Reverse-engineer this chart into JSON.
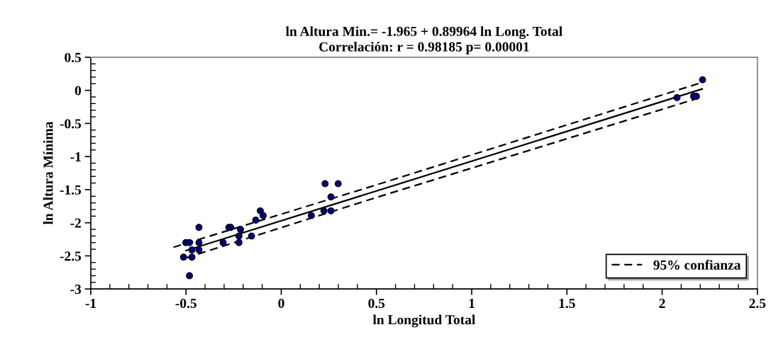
{
  "chart_data": {
    "type": "scatter",
    "title": "ln Altura Min.= -1.965 + 0.89964 ln Long. Total\nCorrelación: r = 0.98185 p= 0.00001",
    "xlabel": "ln Longitud Total",
    "ylabel": "ln Altura Mínima",
    "xlim": [
      -1,
      2.5
    ],
    "ylim": [
      -3,
      0.5
    ],
    "xticks": [
      -1,
      -0.5,
      0,
      0.5,
      1,
      1.5,
      2,
      2.5
    ],
    "yticks": [
      -3,
      -2.5,
      -2,
      -1.5,
      -1,
      -0.5,
      0,
      0.5
    ],
    "grid": false,
    "legend": "bottom right",
    "marker": "circle",
    "series": [
      {
        "color": "#000080",
        "x": [
          -0.513,
          -0.501,
          -0.482,
          -0.482,
          -0.469,
          -0.469,
          -0.432,
          -0.432,
          -0.432,
          -0.305,
          -0.275,
          -0.265,
          -0.222,
          -0.222,
          -0.214,
          -0.156,
          -0.134,
          -0.11,
          -0.095,
          0.158,
          0.224,
          0.261,
          0.261,
          0.23,
          0.299,
          2.078,
          2.165,
          2.18,
          2.212
        ],
        "values": [
          -2.52,
          -2.3,
          -2.3,
          -2.8,
          -2.41,
          -2.52,
          -2.07,
          -2.3,
          -2.41,
          -2.3,
          -2.07,
          -2.07,
          -2.3,
          -2.2,
          -2.1,
          -2.2,
          -1.96,
          -1.82,
          -1.89,
          -1.89,
          -1.82,
          -1.82,
          -1.61,
          -1.41,
          -1.41,
          -0.11,
          -0.09,
          -0.09,
          0.16
        ]
      },
      {
        "type": "line",
        "marker": "none",
        "color": "#000000",
        "line_style": "solid",
        "x": [
          -0.5,
          2.21
        ],
        "values": [
          -2.42,
          0.02
        ]
      },
      {
        "type": "line",
        "marker": "none",
        "name": "95% confianza",
        "color": "#000000",
        "line_style": "dashed",
        "x": [
          -0.566,
          0.464,
          2.21
        ],
        "values": [
          -2.37,
          -1.46,
          0.12
        ]
      },
      {
        "type": "line",
        "marker": "none",
        "color": "#000000",
        "line_style": "dashed",
        "x": [
          -0.5,
          0.464,
          2.21
        ],
        "values": [
          -2.53,
          -1.65,
          -0.1
        ]
      }
    ]
  }
}
